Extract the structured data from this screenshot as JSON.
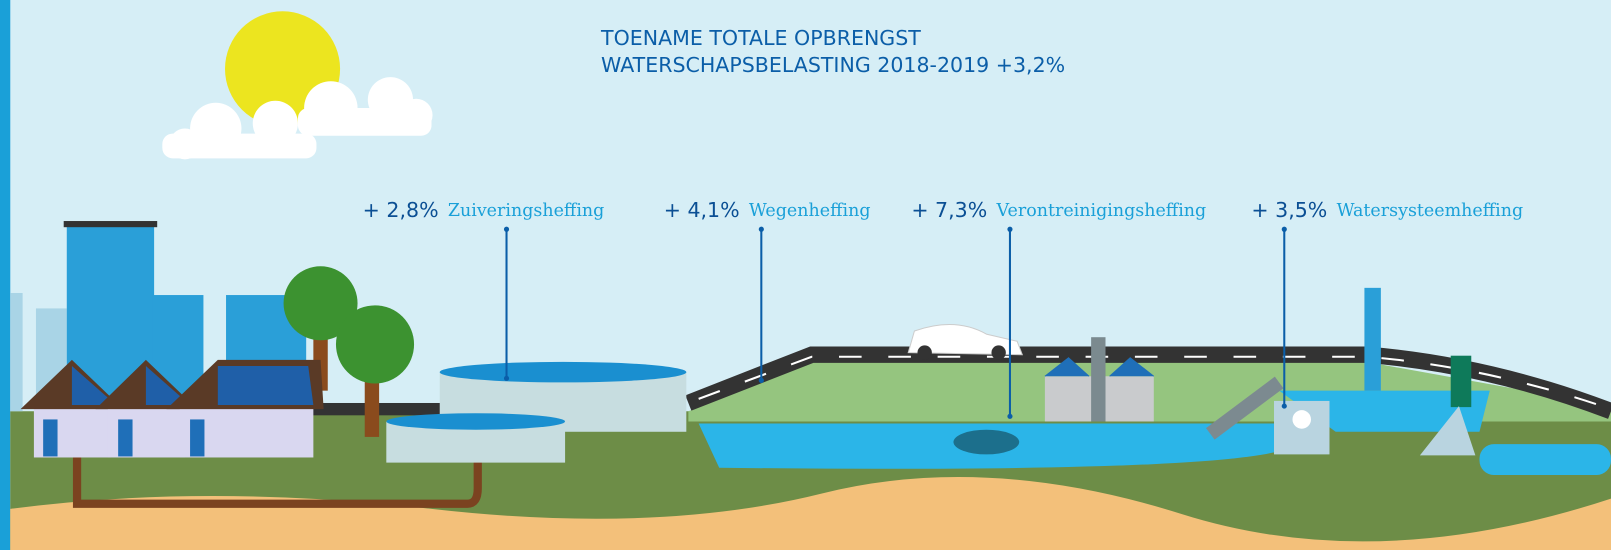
{
  "header": {
    "title_lines": [
      "TOENAME TOTALE OPBRENGST",
      "WATERSCHAPSBELASTING 2018-2019 +3,2%"
    ]
  },
  "levies": [
    {
      "change": "+ 2,8%",
      "name": "Zuiveringsheffing"
    },
    {
      "change": "+ 4,1%",
      "name": "Wegenheffing"
    },
    {
      "change": "+ 7,3%",
      "name": "Verontreinigingsheffing"
    },
    {
      "change": "+ 3,5%",
      "name": "Watersysteemheffing"
    }
  ]
}
